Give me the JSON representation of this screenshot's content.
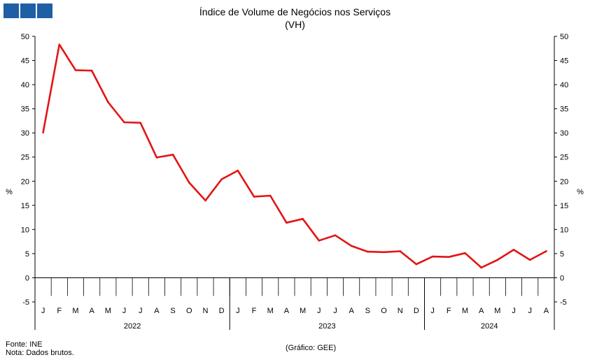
{
  "header": {
    "logo_icon": "institution-logo-squares",
    "title": "Índice de Volume de Negócios nos Serviços",
    "subtitle": "(VH)"
  },
  "chart_data": {
    "type": "line",
    "title": "Índice de Volume de Negócios nos Serviços",
    "subtitle": "(VH)",
    "ylabel": "%",
    "ylabel_right": "%",
    "ylim": [
      -5,
      50
    ],
    "yticks": [
      "50",
      "45",
      "40",
      "35",
      "30",
      "25",
      "20",
      "15",
      "10",
      "5",
      "0",
      "-5"
    ],
    "grid": false,
    "color": "#e31414",
    "x": [
      "J",
      "F",
      "M",
      "A",
      "M",
      "J",
      "J",
      "A",
      "S",
      "O",
      "N",
      "D",
      "J",
      "F",
      "M",
      "A",
      "M",
      "J",
      "J",
      "A",
      "S",
      "O",
      "N",
      "D",
      "J",
      "F",
      "M",
      "A",
      "M",
      "J",
      "J",
      "A"
    ],
    "years": [
      "2022",
      "2023",
      "2024"
    ],
    "values": [
      30.1,
      48.3,
      43.0,
      42.9,
      36.4,
      32.2,
      32.1,
      24.9,
      25.5,
      19.7,
      16.0,
      20.4,
      22.2,
      16.8,
      17.0,
      11.4,
      12.2,
      7.7,
      8.8,
      6.6,
      5.4,
      5.3,
      5.5,
      2.8,
      4.4,
      4.3,
      5.1,
      2.1,
      3.7,
      5.8,
      3.7,
      5.5
    ]
  },
  "footer": {
    "source": "Fonte: INE",
    "note": "Nota: Dados brutos.",
    "credit": "(Gráfico: GEE)"
  }
}
